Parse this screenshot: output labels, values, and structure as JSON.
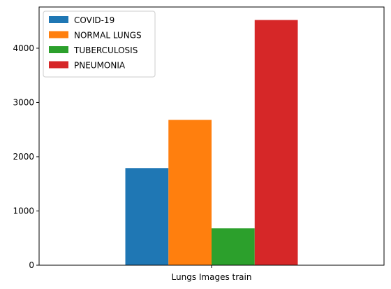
{
  "chart_data": {
    "type": "bar",
    "categories": [
      "Lungs Images train"
    ],
    "series": [
      {
        "name": "COVID-19",
        "values": [
          1790
        ],
        "color": "#1f77b4"
      },
      {
        "name": "NORMAL LUNGS",
        "values": [
          2680
        ],
        "color": "#ff7f0e"
      },
      {
        "name": "TUBERCULOSIS",
        "values": [
          680
        ],
        "color": "#2ca02c"
      },
      {
        "name": "PNEUMONIA",
        "values": [
          4520
        ],
        "color": "#d62728"
      }
    ],
    "title": "",
    "xlabel": "",
    "ylabel": "",
    "ylim": [
      0,
      4760
    ],
    "yticks": [
      0,
      1000,
      2000,
      3000,
      4000
    ],
    "grid": false,
    "legend": "top-left"
  }
}
